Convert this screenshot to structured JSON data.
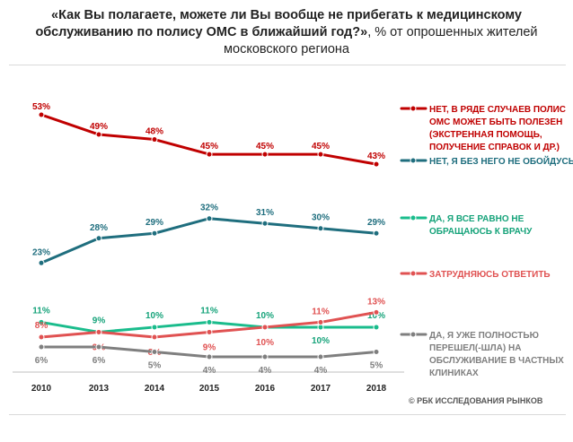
{
  "title_bold": "«Как Вы полагаете, можете ли Вы вообще не прибегать к медицинскому обслуживанию по полису ОМС в ближайший год?»",
  "title_rest": ", % от опрошенных жителей московского региона",
  "credit": "© РБК ИССЛЕДОВАНИЯ РЫНКОВ",
  "chart_data": {
    "type": "line",
    "title": "«Как Вы полагаете, можете ли Вы вообще не прибегать к медицинскому обслуживанию по полису ОМС в ближайший год?», % от опрошенных жителей московского региона",
    "x": [
      "2010",
      "2013",
      "2014",
      "2015",
      "2016",
      "2017",
      "2018"
    ],
    "ylim": [
      0,
      55
    ],
    "grid": false,
    "legend": "right",
    "series": [
      {
        "name": "НЕТ, В РЯДЕ СЛУЧАЕВ ПОЛИС ОМС МОЖЕТ БЫТЬ ПОЛЕЗЕН (ЭКСТРЕННАЯ ПОМОЩЬ, ПОЛУЧЕНИЕ СПРАВОК И ДР.)",
        "legend_lines": [
          "НЕТ, В РЯДЕ СЛУЧАЕВ ПОЛИС",
          "ОМС МОЖЕТ БЫТЬ ПОЛЕЗЕН",
          "(ЭКСТРЕННАЯ ПОМОЩЬ,",
          "ПОЛУЧЕНИЕ СПРАВОК И ДР.)"
        ],
        "color": "#C00000",
        "values": [
          53,
          49,
          48,
          45,
          45,
          45,
          43
        ],
        "labels": [
          "53%",
          "49%",
          "48%",
          "45%",
          "45%",
          "45%",
          "43%"
        ]
      },
      {
        "name": "НЕТ, Я БЕЗ НЕГО НЕ ОБОЙДУСЬ",
        "legend_lines": [
          "НЕТ, Я БЕЗ НЕГО НЕ ОБОЙДУСЬ"
        ],
        "color": "#1F6E7E",
        "values": [
          23,
          28,
          29,
          32,
          31,
          30,
          29
        ],
        "labels": [
          "23%",
          "28%",
          "29%",
          "32%",
          "31%",
          "30%",
          "29%"
        ]
      },
      {
        "name": "ДА, Я ВСЕ РАВНО НЕ ОБРАЩАЮСЬ К ВРАЧУ",
        "legend_lines": [
          "ДА, Я ВСЕ РАВНО НЕ",
          "ОБРАЩАЮСЬ К ВРАЧУ"
        ],
        "color": "#1ABC8C",
        "values": [
          11,
          9,
          10,
          11,
          10,
          10,
          10
        ],
        "labels": [
          "11%",
          "9%",
          "10%",
          "11%",
          "10%",
          "10%",
          "10%"
        ]
      },
      {
        "name": "ЗАТРУДНЯЮСЬ ОТВЕТИТЬ",
        "legend_lines": [
          "ЗАТРУДНЯЮСЬ ОТВЕТИТЬ"
        ],
        "color": "#E05252",
        "values": [
          8,
          9,
          8,
          9,
          10,
          11,
          13
        ],
        "labels": [
          "8%",
          "9%",
          "8%",
          "9%",
          "10%",
          "11%",
          "13%"
        ]
      },
      {
        "name": "ДА, Я УЖЕ ПОЛНОСТЬЮ ПЕРЕШЕЛ(-ШЛА) НА ОБСЛУЖИВАНИЕ В ЧАСТНЫХ КЛИНИКАХ",
        "legend_lines": [
          "ДА, Я УЖЕ ПОЛНОСТЬЮ",
          "ПЕРЕШЕЛ(-ШЛА) НА",
          "ОБСЛУЖИВАНИЕ В ЧАСТНЫХ",
          "КЛИНИКАХ"
        ],
        "color": "#7F7F7F",
        "values": [
          6,
          6,
          5,
          4,
          4,
          4,
          5
        ],
        "labels": [
          "6%",
          "6%",
          "5%",
          "4%",
          "4%",
          "4%",
          "5%"
        ]
      }
    ]
  }
}
